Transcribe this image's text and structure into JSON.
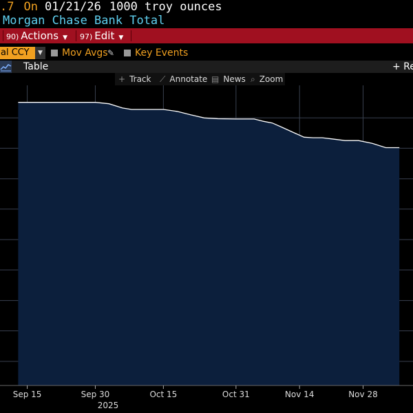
{
  "header": {
    "value_fragment": ".7",
    "on_label": "On",
    "date": "01/21/26",
    "unit": "1000 troy ounces",
    "security": "Morgan Chase Bank Total"
  },
  "menu": {
    "actions_num": "90)",
    "actions_label": "Actions",
    "edit_num": "97)",
    "edit_label": "Edit"
  },
  "options": {
    "ccy_label": "al CCY",
    "mov_avgs": "Mov Avgs",
    "key_events": "Key Events"
  },
  "tabs": {
    "table": "Table",
    "right_fragment": "+ Re"
  },
  "tools": {
    "track": "Track",
    "annotate": "Annotate",
    "news": "News",
    "zoom": "Zoom"
  },
  "colors": {
    "accent_orange": "#f0a020",
    "menu_red": "#a01020",
    "title_cyan": "#5fd0f0",
    "chart_fill": "#0c1f3c",
    "line": "#ffffff"
  },
  "chart_data": {
    "type": "area",
    "x_tick_labels": [
      "Sep 15",
      "Sep 30",
      "Oct 15",
      "Oct 31",
      "Nov 14",
      "Nov 28"
    ],
    "x_tick_dates": [
      "2025-09-15",
      "2025-09-30",
      "2025-10-15",
      "2025-10-31",
      "2025-11-14",
      "2025-11-28"
    ],
    "year_label": "2025",
    "x": [
      "2025-09-13",
      "2025-09-15",
      "2025-09-20",
      "2025-09-30",
      "2025-10-03",
      "2025-10-06",
      "2025-10-08",
      "2025-10-10",
      "2025-10-15",
      "2025-10-18",
      "2025-10-21",
      "2025-10-24",
      "2025-10-27",
      "2025-10-31",
      "2025-11-04",
      "2025-11-06",
      "2025-11-08",
      "2025-11-10",
      "2025-11-13",
      "2025-11-15",
      "2025-11-17",
      "2025-11-19",
      "2025-11-21",
      "2025-11-24",
      "2025-11-27",
      "2025-11-30",
      "2025-12-03",
      "2025-12-06"
    ],
    "y": [
      100,
      100,
      100,
      100,
      99.5,
      98,
      97.5,
      97.5,
      97.5,
      96.8,
      95.6,
      94.5,
      94.2,
      94.1,
      94.1,
      93.3,
      92.7,
      91.3,
      89.1,
      87.7,
      87.5,
      87.5,
      87.1,
      86.5,
      86.5,
      85.5,
      84,
      84
    ],
    "y_range": [
      0,
      106
    ],
    "y_gridlines": [
      0,
      8.5,
      19.3,
      30.0,
      40.8,
      51.5,
      62.3,
      73.0,
      83.8,
      94.5
    ],
    "y_tick_labels_visible": false,
    "grid": true
  }
}
